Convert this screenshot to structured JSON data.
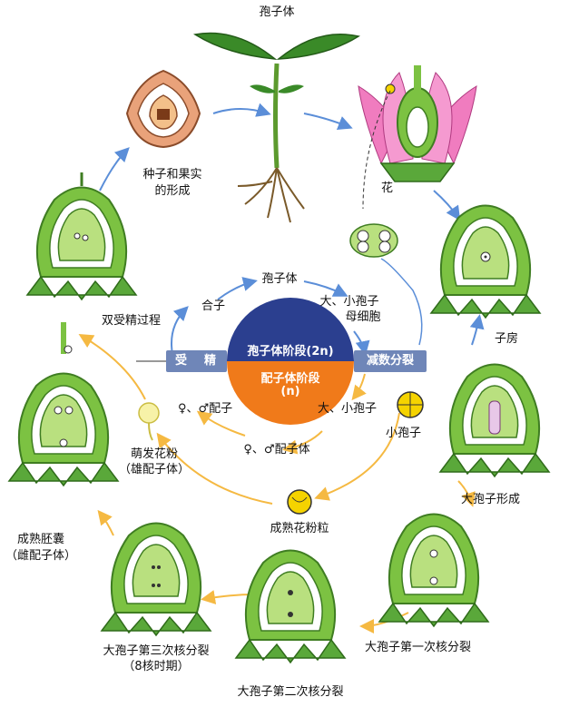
{
  "labels": {
    "sporophyte_top": "孢子体",
    "flower": "花",
    "seed_fruit_l1": "种子和果实",
    "seed_fruit_l2": "的形成",
    "double_fert": "双受精过程",
    "ovary": "子房",
    "megaspore_form": "大孢子形成",
    "first_div": "大孢子第一次核分裂",
    "second_div": "大孢子第二次核分裂",
    "third_div_l1": "大孢子第三次核分裂",
    "third_div_l2": "（8核时期）",
    "mature_sac_l1": "成熟胚囊",
    "mature_sac_l2": "（雌配子体）",
    "germ_pollen_l1": "萌发花粉",
    "germ_pollen_l2": "（雄配子体）",
    "mature_pollen": "成熟花粉粒",
    "microspore": "小孢子",
    "zygote": "合子",
    "cycle_sporophyte": "孢子体",
    "mother_cell_l1": "大、小孢子",
    "mother_cell_l2": "母细胞",
    "spores_l2": "大、小孢子",
    "gametes": "♀、♂配子",
    "gametophyte": "♀、♂配子体",
    "fertilization_left": "受",
    "fertilization_right": "精",
    "meiosis": "减数分裂",
    "sporophyte_phase": "孢子体阶段(2n)",
    "gametophyte_phase_l1": "配子体阶段",
    "gametophyte_phase_l2": "(n)"
  },
  "colors": {
    "blue_phase": "#2b3f8f",
    "orange_phase": "#f07a1a",
    "band": "#6f86b8",
    "arrow_blue": "#5b8ed8",
    "arrow_orange": "#f5b942",
    "ovule_green": "#7cc242",
    "ovule_dark": "#3f7d22",
    "petal_pink": "#f07cbf"
  }
}
